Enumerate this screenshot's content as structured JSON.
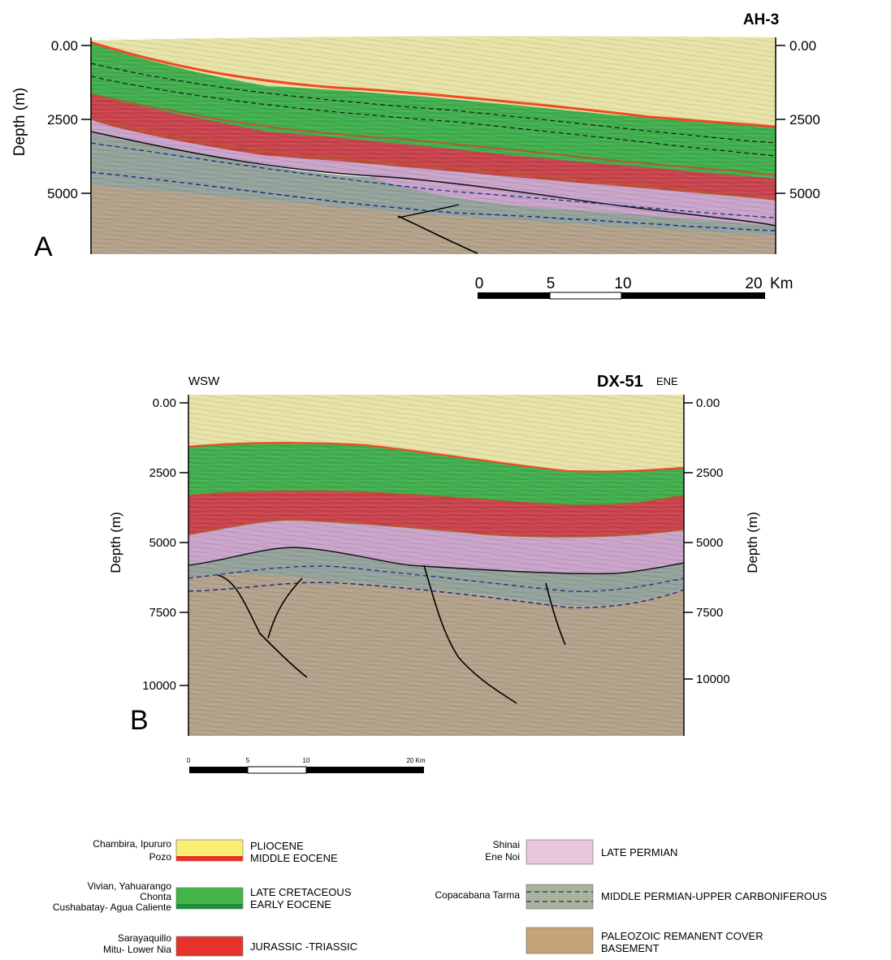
{
  "panel_a": {
    "well": "AH-3",
    "letter": "A",
    "ylabel": "Depth (m)",
    "ticks": [
      "0.00",
      "2500",
      "5000"
    ],
    "scale_bar": {
      "labels": [
        "0",
        "5",
        "10",
        "20"
      ],
      "unit": "Km"
    }
  },
  "panel_b": {
    "well": "DX-51",
    "left_dir": "WSW",
    "right_dir": "ENE",
    "letter": "B",
    "ylabel": "Depth (m)",
    "ticks": [
      "0.00",
      "2500",
      "5000",
      "7500",
      "10000"
    ],
    "scale_bar": {
      "labels": [
        "0",
        "5",
        "10",
        "20 Km"
      ]
    }
  },
  "legend": [
    {
      "formations": [
        "Chambira, Ipururo",
        "Pozo"
      ],
      "age": [
        "PLIOCENE",
        "MIDDLE EOCENE"
      ],
      "color": "#f8ee74",
      "band": "#e8322c",
      "style": "band"
    },
    {
      "formations": [
        "Vivian, Yahuarango",
        "Chonta",
        "Cushabatay- Agua Caliente"
      ],
      "age": [
        "LATE CRETACEOUS",
        "EARLY EOCENE"
      ],
      "color": "#44b649",
      "band": "#1f8d3a",
      "style": "band"
    },
    {
      "formations": [
        "Sarayaquillo",
        "Mitu- Lower Nia"
      ],
      "age": [
        "JURASSIC -TRIASSIC"
      ],
      "color": "#e8322c",
      "style": "plain"
    },
    {
      "formations": [
        "Shinai",
        "Ene Noi"
      ],
      "age": [
        "LATE PERMIAN"
      ],
      "color": "#ebc6df",
      "style": "plain"
    },
    {
      "formations": [
        "Copacabana Tarma"
      ],
      "age": [
        "MIDDLE PERMIAN-UPPER CARBONIFEROUS"
      ],
      "color": "#a9b49c",
      "style": "dashed"
    },
    {
      "formations": [],
      "age": [
        "PALEOZOIC REMANENT COVER",
        "BASEMENT"
      ],
      "color": "#c5a47a",
      "style": "plain"
    }
  ],
  "colors": {
    "pliocene": "#e7e2a6",
    "cretaceous": "#3fae4c",
    "jurassic": "#c8404a",
    "permian": "#c9a3c9",
    "carboniferous": "#93a29a",
    "basement": "#b3a18a",
    "top_line": "#ef4a22",
    "contact": "#b45a2a",
    "dash": "#1d2f8f"
  }
}
